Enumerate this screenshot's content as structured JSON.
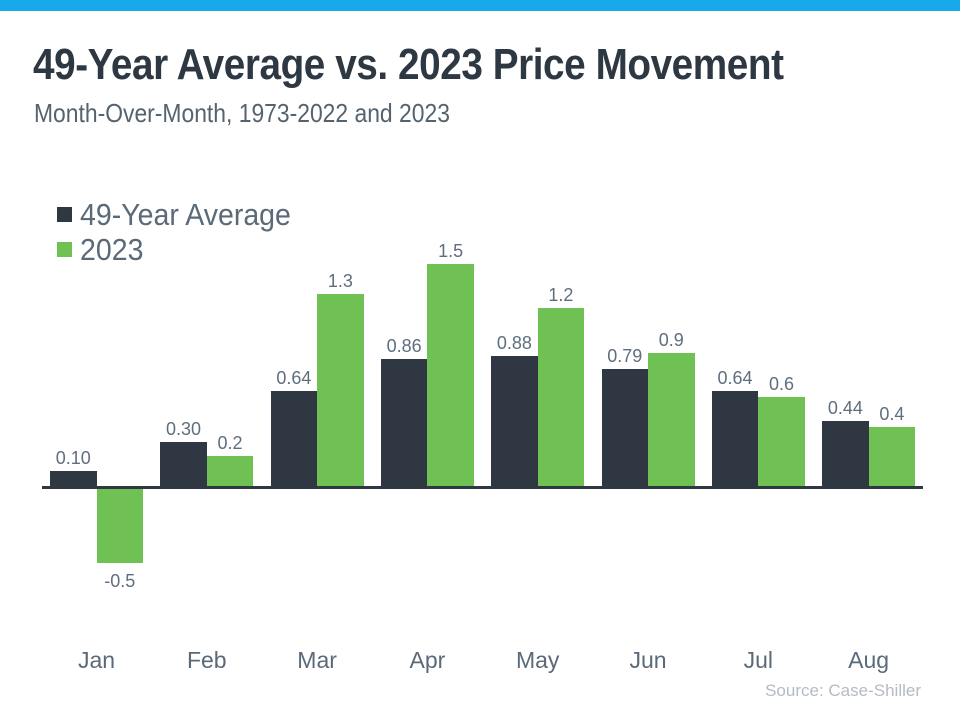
{
  "page": {
    "top_bar_color": "#17a9ec",
    "title": "49-Year Average vs. 2023 Price Movement",
    "subtitle": "Month-Over-Month, 1973-2022 and 2023",
    "source": "Source: Case-Shiller",
    "title_color": "#2d3843",
    "text_color": "#5b6a78",
    "source_color": "#b5bbc2"
  },
  "chart_data": {
    "type": "bar",
    "title": "49-Year Average vs. 2023 Price Movement",
    "subtitle": "Month-Over-Month, 1973-2022 and 2023",
    "categories": [
      "Jan",
      "Feb",
      "Mar",
      "Apr",
      "May",
      "Jun",
      "Jul",
      "Aug"
    ],
    "series": [
      {
        "name": "49-Year Average",
        "color": "#2f3842",
        "values": [
          0.1,
          0.3,
          0.64,
          0.86,
          0.88,
          0.79,
          0.64,
          0.44
        ],
        "labels": [
          "0.10",
          "0.30",
          "0.64",
          "0.86",
          "0.88",
          "0.79",
          "0.64",
          "0.44"
        ]
      },
      {
        "name": "2023",
        "color": "#6fc153",
        "values": [
          -0.5,
          0.2,
          1.3,
          1.5,
          1.2,
          0.9,
          0.6,
          0.4
        ],
        "labels": [
          "-0.5",
          "0.2",
          "1.3",
          "1.5",
          "1.2",
          "0.9",
          "0.6",
          "0.4"
        ]
      }
    ],
    "xlabel": "",
    "ylabel": "",
    "ylim": [
      -0.6,
      1.6
    ],
    "grid": false,
    "axes_visible": false,
    "legend_position": "top-left",
    "data_labels": true,
    "source": "Source: Case-Shiller"
  }
}
